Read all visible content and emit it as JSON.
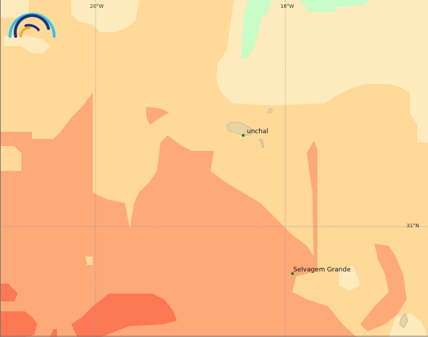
{
  "colors": {
    "pale": "#feebbd",
    "medium": "#fed998",
    "salmon": "#fea978",
    "red": "#fd7855",
    "green": "#c8fcc8",
    "land": "#e8d4a0",
    "grid": "#999999"
  },
  "logo": {
    "icon": "rainbow-arcs-logo"
  },
  "grid_labels": {
    "lon_20w": "20°W",
    "lon_16w": "16°W",
    "lat_31n": "31°N"
  },
  "places": [
    {
      "name": "unchal"
    },
    {
      "name": "Selvagem Grande"
    }
  ]
}
